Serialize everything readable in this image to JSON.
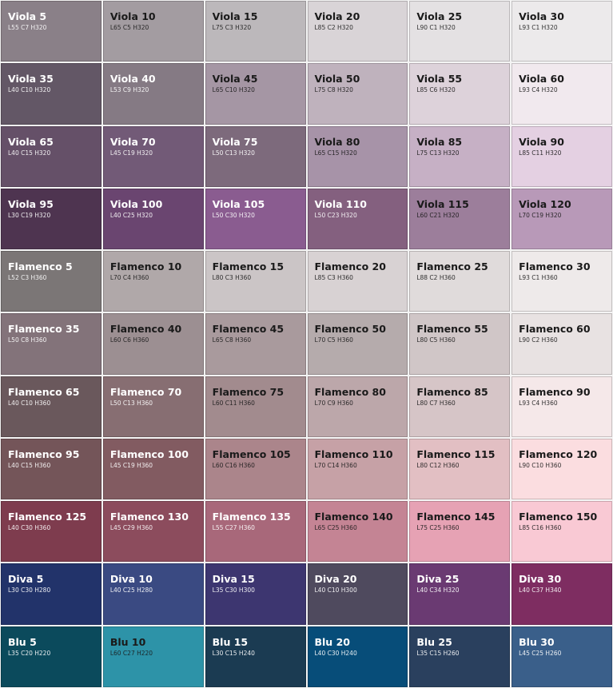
{
  "swatches": [
    {
      "name": "Viola 5",
      "code": "L55 C7 H320",
      "color": "#8a8088",
      "text_color": "#ffffff"
    },
    {
      "name": "Viola 10",
      "code": "L65 C5 H320",
      "color": "#a39ca1",
      "text_color": "#1a1a1a"
    },
    {
      "name": "Viola 15",
      "code": "L75 C3 H320",
      "color": "#bcb8bb",
      "text_color": "#1a1a1a"
    },
    {
      "name": "Viola 20",
      "code": "L85 C2 H320",
      "color": "#d9d4d7",
      "text_color": "#1a1a1a"
    },
    {
      "name": "Viola 25",
      "code": "L90 C1 H320",
      "color": "#e4e1e3",
      "text_color": "#1a1a1a"
    },
    {
      "name": "Viola 30",
      "code": "L93 C1 H320",
      "color": "#eceaeb",
      "text_color": "#1a1a1a"
    },
    {
      "name": "Viola 35",
      "code": "L40 C10 H320",
      "color": "#635766",
      "text_color": "#ffffff"
    },
    {
      "name": "Viola 40",
      "code": "L53 C9 H320",
      "color": "#857a84",
      "text_color": "#ffffff"
    },
    {
      "name": "Viola 45",
      "code": "L65 C10 H320",
      "color": "#a596a4",
      "text_color": "#1a1a1a"
    },
    {
      "name": "Viola 50",
      "code": "L75 C8 H320",
      "color": "#bfb2bd",
      "text_color": "#1a1a1a"
    },
    {
      "name": "Viola 55",
      "code": "L85 C6 H320",
      "color": "#ddd2da",
      "text_color": "#1a1a1a"
    },
    {
      "name": "Viola 60",
      "code": "L93 C4 H320",
      "color": "#f1e9ee",
      "text_color": "#1a1a1a"
    },
    {
      "name": "Viola 65",
      "code": "L40 C15 H320",
      "color": "#655068",
      "text_color": "#ffffff"
    },
    {
      "name": "Viola 70",
      "code": "L45 C19 H320",
      "color": "#725a77",
      "text_color": "#ffffff"
    },
    {
      "name": "Viola 75",
      "code": "L50 C13 H320",
      "color": "#7d6a7c",
      "text_color": "#ffffff"
    },
    {
      "name": "Viola 80",
      "code": "L65 C15 H320",
      "color": "#a793a8",
      "text_color": "#1a1a1a"
    },
    {
      "name": "Viola 85",
      "code": "L75 C13 H320",
      "color": "#c6b0c5",
      "text_color": "#1a1a1a"
    },
    {
      "name": "Viola 90",
      "code": "L85 C11 H320",
      "color": "#e4d0e2",
      "text_color": "#1a1a1a"
    },
    {
      "name": "Viola 95",
      "code": "L30 C19 H320",
      "color": "#4e3450",
      "text_color": "#ffffff"
    },
    {
      "name": "Viola 100",
      "code": "L40 C25 H320",
      "color": "#6a4570",
      "text_color": "#ffffff"
    },
    {
      "name": "Viola 105",
      "code": "L50 C30 H320",
      "color": "#8a5c90",
      "text_color": "#ffffff"
    },
    {
      "name": "Viola 110",
      "code": "L50 C23 H320",
      "color": "#84607f",
      "text_color": "#ffffff"
    },
    {
      "name": "Viola 115",
      "code": "L60 C21 H320",
      "color": "#9c7e9b",
      "text_color": "#1a1a1a"
    },
    {
      "name": "Viola 120",
      "code": "L70 C19 H320",
      "color": "#b899b8",
      "text_color": "#1a1a1a"
    },
    {
      "name": "Flamenco 5",
      "code": "L52 C3 H360",
      "color": "#7b7676",
      "text_color": "#ffffff"
    },
    {
      "name": "Flamenco 10",
      "code": "L70 C4 H360",
      "color": "#b0a8a9",
      "text_color": "#1a1a1a"
    },
    {
      "name": "Flamenco 15",
      "code": "L80 C3 H360",
      "color": "#cbc5c6",
      "text_color": "#1a1a1a"
    },
    {
      "name": "Flamenco 20",
      "code": "L85 C3 H360",
      "color": "#d8d2d3",
      "text_color": "#1a1a1a"
    },
    {
      "name": "Flamenco 25",
      "code": "L88 C2 H360",
      "color": "#e0dbdb",
      "text_color": "#1a1a1a"
    },
    {
      "name": "Flamenco 30",
      "code": "L93 C1 H360",
      "color": "#eeeaea",
      "text_color": "#1a1a1a"
    },
    {
      "name": "Flamenco 35",
      "code": "L50 C8 H360",
      "color": "#83737a",
      "text_color": "#ffffff"
    },
    {
      "name": "Flamenco 40",
      "code": "L60 C6 H360",
      "color": "#9c8f92",
      "text_color": "#1a1a1a"
    },
    {
      "name": "Flamenco 45",
      "code": "L65 C8 H360",
      "color": "#a99a9d",
      "text_color": "#1a1a1a"
    },
    {
      "name": "Flamenco 50",
      "code": "L70 C5 H360",
      "color": "#b5abac",
      "text_color": "#1a1a1a"
    },
    {
      "name": "Flamenco 55",
      "code": "L80 C5 H360",
      "color": "#d0c6c7",
      "text_color": "#1a1a1a"
    },
    {
      "name": "Flamenco 60",
      "code": "L90 C2 H360",
      "color": "#e8e2e2",
      "text_color": "#1a1a1a"
    },
    {
      "name": "Flamenco 65",
      "code": "L40 C10 H360",
      "color": "#6a585c",
      "text_color": "#ffffff"
    },
    {
      "name": "Flamenco 70",
      "code": "L50 C13 H360",
      "color": "#876e72",
      "text_color": "#ffffff"
    },
    {
      "name": "Flamenco 75",
      "code": "L60 C11 H360",
      "color": "#a28b8e",
      "text_color": "#1a1a1a"
    },
    {
      "name": "Flamenco 80",
      "code": "L70 C9 H360",
      "color": "#bca7aa",
      "text_color": "#1a1a1a"
    },
    {
      "name": "Flamenco 85",
      "code": "L80 C7 H360",
      "color": "#d6c5c7",
      "text_color": "#1a1a1a"
    },
    {
      "name": "Flamenco 90",
      "code": "L93 C4 H360",
      "color": "#f5e8e9",
      "text_color": "#1a1a1a"
    },
    {
      "name": "Flamenco 95",
      "code": "L40 C15 H360",
      "color": "#745559",
      "text_color": "#ffffff"
    },
    {
      "name": "Flamenco 100",
      "code": "L45 C19 H360",
      "color": "#825b61",
      "text_color": "#ffffff"
    },
    {
      "name": "Flamenco 105",
      "code": "L60 C16 H360",
      "color": "#ab858b",
      "text_color": "#1a1a1a"
    },
    {
      "name": "Flamenco 110",
      "code": "L70 C14 H360",
      "color": "#c6a1a6",
      "text_color": "#1a1a1a"
    },
    {
      "name": "Flamenco 115",
      "code": "L80 C12 H360",
      "color": "#e2bfc3",
      "text_color": "#1a1a1a"
    },
    {
      "name": "Flamenco 120",
      "code": "L90 C10 H360",
      "color": "#fbdde0",
      "text_color": "#1a1a1a"
    },
    {
      "name": "Flamenco 125",
      "code": "L40 C30 H360",
      "color": "#7e3c4e",
      "text_color": "#ffffff"
    },
    {
      "name": "Flamenco 130",
      "code": "L45 C29 H360",
      "color": "#8c4c5d",
      "text_color": "#ffffff"
    },
    {
      "name": "Flamenco 135",
      "code": "L55 C27 H360",
      "color": "#a8687a",
      "text_color": "#ffffff"
    },
    {
      "name": "Flamenco 140",
      "code": "L65 C25 H360",
      "color": "#c48494",
      "text_color": "#1a1a1a"
    },
    {
      "name": "Flamenco 145",
      "code": "L75 C25 H360",
      "color": "#e6a2b4",
      "text_color": "#1a1a1a"
    },
    {
      "name": "Flamenco 150",
      "code": "L85 C16 H360",
      "color": "#f9c9d4",
      "text_color": "#1a1a1a"
    },
    {
      "name": "Diva 5",
      "code": "L30 C30 H280",
      "color": "#22336a",
      "text_color": "#ffffff"
    },
    {
      "name": "Diva 10",
      "code": "L40 C25 H280",
      "color": "#3a4a82",
      "text_color": "#ffffff"
    },
    {
      "name": "Diva 15",
      "code": "L35 C30 H300",
      "color": "#3d3670",
      "text_color": "#ffffff"
    },
    {
      "name": "Diva 20",
      "code": "L40 C10 H300",
      "color": "#4f4a5e",
      "text_color": "#ffffff"
    },
    {
      "name": "Diva 25",
      "code": "L40 C34 H320",
      "color": "#6a3a72",
      "text_color": "#ffffff"
    },
    {
      "name": "Diva 30",
      "code": "L40 C37 H340",
      "color": "#7e2d61",
      "text_color": "#ffffff"
    },
    {
      "name": "Blu 5",
      "code": "L35 C20 H220",
      "color": "#0b4a5c",
      "text_color": "#ffffff"
    },
    {
      "name": "Blu 10",
      "code": "L60 C27 H220",
      "color": "#2d93a8",
      "text_color": "#1a1a1a"
    },
    {
      "name": "Blu 15",
      "code": "L30 C15 H240",
      "color": "#1b3b52",
      "text_color": "#ffffff"
    },
    {
      "name": "Blu 20",
      "code": "L40 C30 H240",
      "color": "#074d79",
      "text_color": "#ffffff"
    },
    {
      "name": "Blu 25",
      "code": "L35 C15 H260",
      "color": "#2a405e",
      "text_color": "#ffffff"
    },
    {
      "name": "Blu 30",
      "code": "L45 C25 H260",
      "color": "#3a5f8a",
      "text_color": "#ffffff"
    }
  ]
}
